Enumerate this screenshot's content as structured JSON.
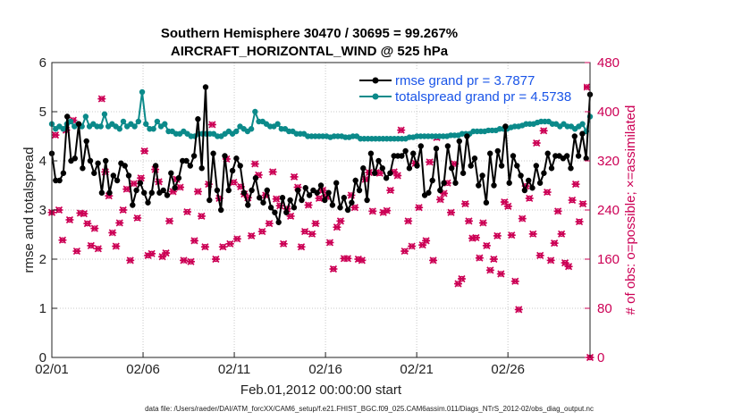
{
  "chart_data": {
    "type": "line",
    "title_line1": "Southern Hemisphere 30470 / 30695 = 99.267%",
    "title_line2": "AIRCRAFT_HORIZONTAL_WIND @ 525 hPa",
    "xlabel": "Feb.01,2012 00:00:00 start",
    "ylabel_left": "rmse and totalspread",
    "ylabel_right": "# of obs: o=possible; ×=assimilated",
    "footnote": "data file: /Users/raeder/DAI/ATM_forcXX/CAM6_setup/f.e21.FHIST_BGC.f09_025.CAM6assim.011/Diags_NTrS_2012-02/obs_diag_output.nc",
    "xlim": [
      0,
      29.5
    ],
    "ylim_left": [
      0,
      6
    ],
    "ylim_right": [
      0,
      480
    ],
    "x_ticks": [
      0,
      5,
      10,
      15,
      20,
      25
    ],
    "x_tick_labels": [
      "02/01",
      "02/06",
      "02/11",
      "02/16",
      "02/21",
      "02/26"
    ],
    "y_ticks_left": [
      0,
      1,
      2,
      3,
      4,
      5,
      6
    ],
    "y_ticks_right": [
      0,
      80,
      160,
      240,
      320,
      400,
      480
    ],
    "colors": {
      "rmse": "#000000",
      "spread": "#0b8a8a",
      "obs": "#cc0055",
      "legend_text": "#1a55e8"
    },
    "series": [
      {
        "name": "rmse grand pr = 3.7877",
        "axis": "left",
        "values": [
          4.15,
          3.6,
          3.6,
          3.75,
          4.9,
          4.0,
          4.05,
          4.75,
          3.85,
          4.4,
          4.0,
          3.75,
          3.95,
          3.35,
          4.0,
          3.35,
          3.7,
          3.6,
          3.95,
          3.9,
          3.7,
          3.1,
          3.4,
          3.55,
          3.35,
          3.15,
          3.35,
          3.9,
          3.35,
          3.4,
          3.3,
          3.75,
          3.45,
          3.65,
          4.0,
          4.0,
          3.9,
          4.1,
          4.85,
          3.85,
          5.5,
          3.2,
          4.15,
          3.4,
          3.0,
          4.1,
          3.4,
          3.8,
          4.05,
          3.9,
          3.35,
          3.1,
          3.4,
          3.65,
          3.25,
          3.15,
          3.4,
          3.05,
          2.95,
          2.75,
          3.25,
          2.95,
          3.2,
          3.05,
          3.4,
          3.2,
          3.45,
          3.3,
          3.4,
          3.35,
          3.5,
          3.2,
          3.35,
          3.1,
          3.55,
          3.05,
          3.25,
          3.0,
          3.15,
          3.6,
          3.4,
          3.85,
          3.2,
          4.15,
          3.75,
          4.0,
          3.85,
          3.65,
          3.75,
          4.1,
          4.1,
          4.1,
          4.2,
          3.85,
          4.15,
          3.9,
          4.3,
          3.3,
          3.35,
          3.6,
          4.25,
          3.4,
          3.55,
          4.3,
          3.85,
          3.55,
          4.4,
          3.75,
          4.5,
          3.9,
          4.05,
          3.5,
          3.7,
          3.15,
          4.15,
          3.5,
          4.2,
          3.9,
          4.7,
          3.55,
          4.1,
          3.9,
          3.7,
          3.4,
          3.6,
          3.45,
          3.9,
          3.55,
          3.75,
          4.15,
          3.85,
          4.1,
          4.1,
          4.05,
          4.1,
          3.85,
          4.5,
          4.1,
          4.55,
          4.05,
          5.35
        ]
      },
      {
        "name": "totalspread grand pr = 4.5738",
        "axis": "left",
        "values": [
          4.75,
          4.65,
          4.7,
          4.65,
          4.75,
          4.8,
          4.7,
          4.75,
          4.7,
          4.9,
          4.7,
          4.75,
          4.7,
          4.7,
          4.95,
          4.7,
          4.75,
          4.7,
          4.65,
          4.8,
          4.7,
          4.75,
          4.7,
          4.8,
          5.4,
          4.75,
          4.65,
          4.65,
          4.8,
          4.7,
          4.75,
          4.6,
          4.6,
          4.55,
          4.55,
          4.6,
          4.55,
          4.5,
          4.5,
          4.55,
          4.55,
          4.55,
          4.55,
          4.55,
          4.5,
          4.5,
          4.55,
          4.6,
          4.55,
          4.6,
          4.7,
          4.65,
          4.6,
          4.65,
          5.0,
          4.8,
          4.8,
          4.75,
          4.7,
          4.7,
          4.75,
          4.65,
          4.65,
          4.6,
          4.6,
          4.55,
          4.55,
          4.55,
          4.5,
          4.5,
          4.5,
          4.5,
          4.5,
          4.5,
          4.48,
          4.5,
          4.5,
          4.5,
          4.48,
          4.48,
          4.5,
          4.5,
          4.45,
          4.45,
          4.45,
          4.45,
          4.45,
          4.45,
          4.45,
          4.45,
          4.45,
          4.45,
          4.45,
          4.45,
          4.45,
          4.48,
          4.48,
          4.5,
          4.5,
          4.5,
          4.5,
          4.5,
          4.5,
          4.5,
          4.5,
          4.5,
          4.52,
          4.52,
          4.52,
          4.55,
          4.55,
          4.55,
          4.6,
          4.6,
          4.6,
          4.6,
          4.62,
          4.62,
          4.62,
          4.65,
          4.65,
          4.65,
          4.68,
          4.7,
          4.7,
          4.72,
          4.75,
          4.75,
          4.75,
          4.78,
          4.8,
          4.8,
          4.8,
          4.75,
          4.75,
          4.7,
          4.75,
          4.7,
          4.7,
          4.65,
          4.7,
          4.75,
          4.6,
          4.9
        ]
      },
      {
        "name": "# of obs possible",
        "axis": "right",
        "marker": "o",
        "values": [
          236,
          362,
          240,
          191,
          370,
          224,
          386,
          173,
          235,
          234,
          218,
          182,
          210,
          177,
          421,
          302,
          263,
          203,
          181,
          219,
          240,
          274,
          158,
          283,
          227,
          292,
          336,
          166,
          169,
          306,
          286,
          164,
          170,
          222,
          270,
          290,
          277,
          158,
          237,
          156,
          190,
          270,
          230,
          180,
          282,
          379,
          160,
          259,
          180,
          323,
          185,
          285,
          193,
          278,
          266,
          260,
          198,
          315,
          297,
          205,
          264,
          218,
          302,
          258,
          247,
          185,
          242,
          230,
          294,
          277,
          180,
          205,
          248,
          201,
          218,
          259,
          272,
          262,
          187,
          144,
          212,
          222,
          161,
          161,
          264,
          244,
          160,
          158,
          290,
          301,
          238,
          301,
          300,
          236,
          239,
          272,
          302,
          296,
          370,
          173,
          222,
          181,
          316,
          244,
          183,
          190,
          318,
          158,
          358,
          257,
          267,
          284,
          236,
          315,
          120,
          128,
          250,
          222,
          194,
          195,
          162,
          219,
          182,
          142,
          160,
          198,
          136,
          253,
          246,
          199,
          124,
          78,
          226,
          279,
          259,
          201,
          349,
          166,
          369,
          269,
          158,
          186,
          238,
          201,
          154,
          148,
          256,
          282,
          221,
          250,
          440,
          0
        ]
      }
    ]
  }
}
